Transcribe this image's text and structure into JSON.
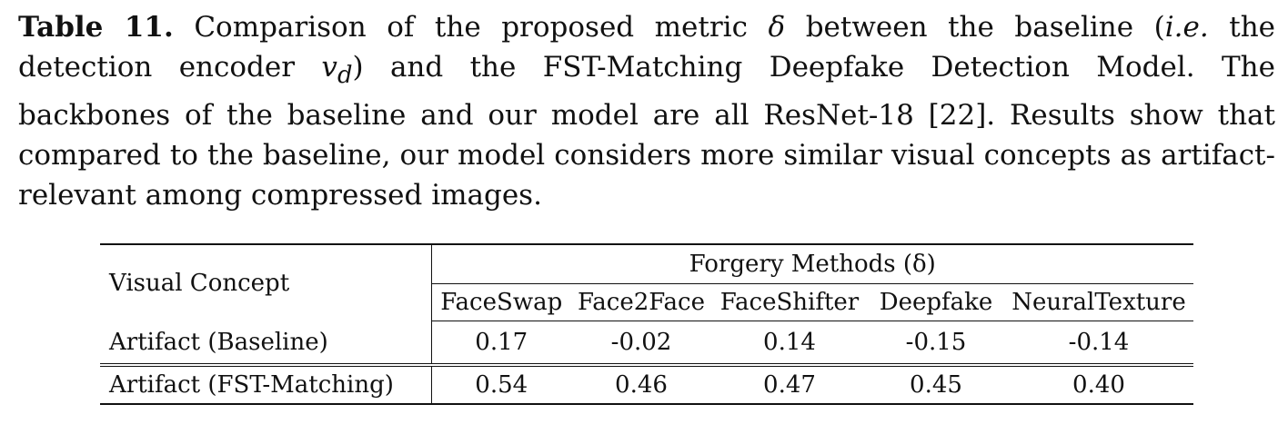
{
  "caption": {
    "label": "Table 11.",
    "text_1": " Comparison of the proposed metric ",
    "delta": "δ",
    "text_2": " between the baseline (",
    "ie": "i.e.",
    "text_3": " the detection encoder ",
    "vd": "v",
    "vd_sub": "d",
    "text_4": ") and the FST-Matching Deepfake Detection Model. The backbones of the baseline and our model are all ResNet-18 [22]. Results show that compared to the baseline, our model considers more similar visual concepts as artifact-relevant among compressed images."
  },
  "table": {
    "concept_header": "Visual Concept",
    "group_header": "Forgery Methods (δ)",
    "methods": [
      "FaceSwap",
      "Face2Face",
      "FaceShifter",
      "Deepfake",
      "NeuralTexture"
    ],
    "rows": [
      {
        "label": "Artifact (Baseline)",
        "values": [
          "0.17",
          "-0.02",
          "0.14",
          "-0.15",
          "-0.14"
        ]
      },
      {
        "label": "Artifact (FST-Matching)",
        "values": [
          "0.54",
          "0.46",
          "0.47",
          "0.45",
          "0.40"
        ]
      }
    ]
  }
}
